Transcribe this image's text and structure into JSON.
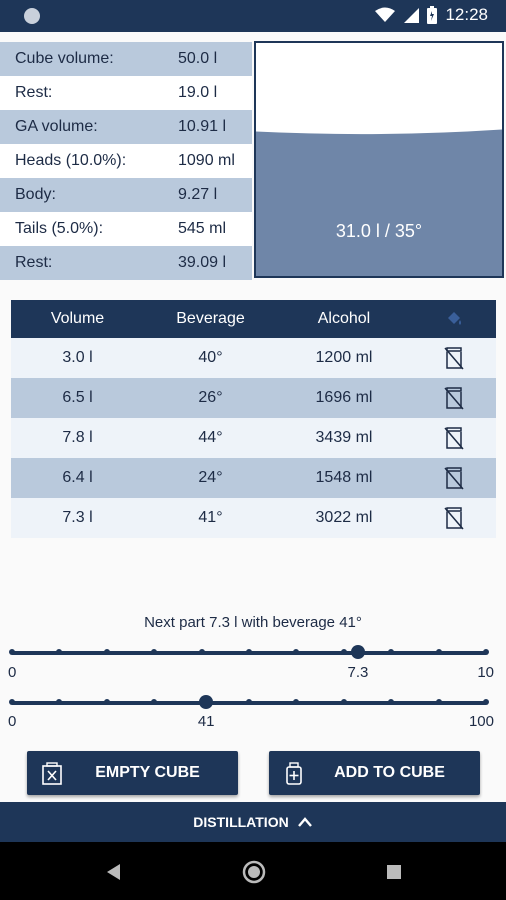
{
  "status": {
    "time": "12:28"
  },
  "stats": [
    {
      "label": "Cube volume:",
      "value": "50.0 l"
    },
    {
      "label": "Rest:",
      "value": "19.0 l"
    },
    {
      "label": "GA volume:",
      "value": "10.91 l"
    },
    {
      "label": "Heads (10.0%):",
      "value": "1090 ml"
    },
    {
      "label": "Body:",
      "value": "9.27 l"
    },
    {
      "label": "Tails (5.0%):",
      "value": "545 ml"
    },
    {
      "label": "Rest:",
      "value": "39.09 l"
    }
  ],
  "cube": {
    "caption": "31.0 l / 35°",
    "fill_fraction": 0.62
  },
  "table": {
    "headers": [
      "Volume",
      "Beverage",
      "Alcohol"
    ],
    "rows": [
      {
        "volume": "3.0 l",
        "beverage": "40°",
        "alcohol": "1200 ml"
      },
      {
        "volume": "6.5 l",
        "beverage": "26°",
        "alcohol": "1696 ml"
      },
      {
        "volume": "7.8 l",
        "beverage": "44°",
        "alcohol": "3439 ml"
      },
      {
        "volume": "6.4 l",
        "beverage": "24°",
        "alcohol": "1548 ml"
      },
      {
        "volume": "7.3 l",
        "beverage": "41°",
        "alcohol": "3022 ml"
      }
    ]
  },
  "next_part": "Next part 7.3 l with beverage 41°",
  "volume_slider": {
    "min_label": "0",
    "max_label": "10",
    "value_label": "7.3",
    "value": 7.3,
    "min": 0,
    "max": 10
  },
  "beverage_slider": {
    "min_label": "0",
    "max_label": "100",
    "value_label": "41",
    "value": 41,
    "min": 0,
    "max": 100
  },
  "buttons": {
    "empty": "EMPTY CUBE",
    "add": "ADD TO CUBE"
  },
  "bottom_bar": {
    "label": "DISTILLATION"
  },
  "icons": {
    "row_action": "clear-jar-icon",
    "header_action": "paint-bucket-icon"
  },
  "colors": {
    "primary": "#1e3658",
    "shaded": "#b9c9dc",
    "liquid": "#6f86a8"
  }
}
